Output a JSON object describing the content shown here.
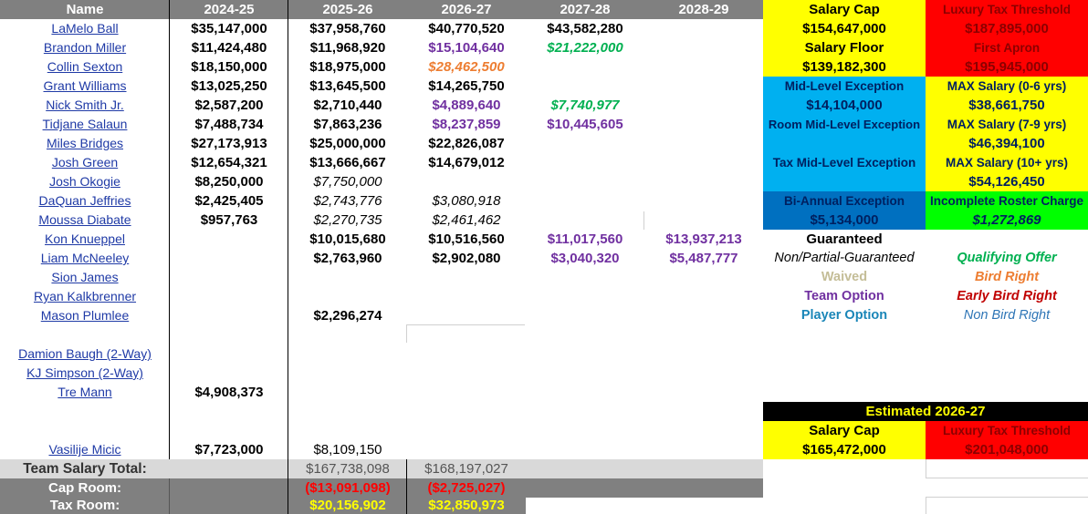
{
  "headers": [
    "Name",
    "2024-25",
    "2025-26",
    "2026-27",
    "2027-28",
    "2028-29"
  ],
  "colors": {
    "header_gray": "#808080",
    "yellow": "#ffff00",
    "red": "#ff0000",
    "cyan": "#00b0f0",
    "blue": "#0070c0",
    "green": "#00ff00",
    "black": "#000000",
    "light_gray": "#d9d9d9",
    "purple": "#7030a0",
    "orange": "#ed7d31",
    "green_text": "#00b050",
    "teal": "#0070c0",
    "tan": "#c4bd97",
    "dark_red": "#c00000",
    "name_blue": "#1f3aa6"
  },
  "players": [
    {
      "name": "LaMelo Ball",
      "cells": [
        {
          "v": "$35,147,000",
          "s": "g"
        },
        {
          "v": "$37,958,760",
          "s": "g"
        },
        {
          "v": "$40,770,520",
          "s": "g"
        },
        {
          "v": "$43,582,280",
          "s": "g"
        },
        {
          "v": "",
          "s": ""
        }
      ]
    },
    {
      "name": "Brandon Miller",
      "cells": [
        {
          "v": "$11,424,480",
          "s": "g"
        },
        {
          "v": "$11,968,920",
          "s": "g"
        },
        {
          "v": "$15,104,640",
          "s": "team"
        },
        {
          "v": "$21,222,000",
          "s": "qo"
        },
        {
          "v": "",
          "s": ""
        }
      ]
    },
    {
      "name": "Collin Sexton",
      "cells": [
        {
          "v": "$18,150,000",
          "s": "g"
        },
        {
          "v": "$18,975,000",
          "s": "g"
        },
        {
          "v": "$28,462,500",
          "s": "bird"
        },
        {
          "v": "",
          "s": ""
        },
        {
          "v": "",
          "s": ""
        }
      ]
    },
    {
      "name": "Grant Williams ",
      "cells": [
        {
          "v": "$13,025,250",
          "s": "g"
        },
        {
          "v": "$13,645,500",
          "s": "g"
        },
        {
          "v": "$14,265,750",
          "s": "g"
        },
        {
          "v": "",
          "s": ""
        },
        {
          "v": "",
          "s": ""
        }
      ]
    },
    {
      "name": "Nick Smith Jr.",
      "cells": [
        {
          "v": "$2,587,200",
          "s": "g"
        },
        {
          "v": "$2,710,440",
          "s": "g"
        },
        {
          "v": "$4,889,640",
          "s": "team"
        },
        {
          "v": "$7,740,977",
          "s": "qo"
        },
        {
          "v": "",
          "s": ""
        }
      ]
    },
    {
      "name": "Tidjane Salaun",
      "cells": [
        {
          "v": "$7,488,734",
          "s": "g"
        },
        {
          "v": "$7,863,236",
          "s": "g"
        },
        {
          "v": "$8,237,859",
          "s": "team"
        },
        {
          "v": "$10,445,605",
          "s": "team"
        },
        {
          "v": "",
          "s": ""
        }
      ]
    },
    {
      "name": "Miles Bridges",
      "cells": [
        {
          "v": "$27,173,913",
          "s": "g"
        },
        {
          "v": "$25,000,000",
          "s": "g"
        },
        {
          "v": "$22,826,087",
          "s": "g"
        },
        {
          "v": "",
          "s": ""
        },
        {
          "v": "",
          "s": ""
        }
      ]
    },
    {
      "name": "Josh Green",
      "cells": [
        {
          "v": "$12,654,321",
          "s": "g"
        },
        {
          "v": "$13,666,667",
          "s": "g"
        },
        {
          "v": "$14,679,012",
          "s": "g"
        },
        {
          "v": "",
          "s": ""
        },
        {
          "v": "",
          "s": ""
        }
      ]
    },
    {
      "name": "Josh Okogie",
      "cells": [
        {
          "v": "$8,250,000",
          "s": "g"
        },
        {
          "v": "$7,750,000",
          "s": "np"
        },
        {
          "v": "",
          "s": ""
        },
        {
          "v": "",
          "s": ""
        },
        {
          "v": "",
          "s": ""
        }
      ]
    },
    {
      "name": "DaQuan Jeffries",
      "cells": [
        {
          "v": "$2,425,405",
          "s": "g"
        },
        {
          "v": "$2,743,776",
          "s": "np"
        },
        {
          "v": "$3,080,918",
          "s": "np"
        },
        {
          "v": "",
          "s": ""
        },
        {
          "v": "",
          "s": ""
        }
      ]
    },
    {
      "name": "Moussa Diabate",
      "cells": [
        {
          "v": "$957,763",
          "s": "g"
        },
        {
          "v": "$2,270,735",
          "s": "np"
        },
        {
          "v": "$2,461,462",
          "s": "np"
        },
        {
          "v": "",
          "s": ""
        },
        {
          "v": "",
          "s": ""
        }
      ]
    },
    {
      "name": "Kon Knueppel",
      "cells": [
        {
          "v": "",
          "s": ""
        },
        {
          "v": "$10,015,680",
          "s": "g"
        },
        {
          "v": "$10,516,560",
          "s": "g"
        },
        {
          "v": "$11,017,560",
          "s": "team"
        },
        {
          "v": "$13,937,213",
          "s": "team"
        }
      ]
    },
    {
      "name": "Liam McNeeley",
      "cells": [
        {
          "v": "",
          "s": ""
        },
        {
          "v": "$2,763,960",
          "s": "g"
        },
        {
          "v": "$2,902,080",
          "s": "g"
        },
        {
          "v": "$3,040,320",
          "s": "team"
        },
        {
          "v": "$5,487,777",
          "s": "team"
        }
      ]
    },
    {
      "name": "Sion James",
      "cells": [
        {
          "v": "",
          "s": ""
        },
        {
          "v": "",
          "s": ""
        },
        {
          "v": "",
          "s": ""
        },
        {
          "v": "",
          "s": ""
        },
        {
          "v": "",
          "s": ""
        }
      ]
    },
    {
      "name": "Ryan Kalkbrenner",
      "cells": [
        {
          "v": "",
          "s": ""
        },
        {
          "v": "",
          "s": ""
        },
        {
          "v": "",
          "s": ""
        },
        {
          "v": "",
          "s": ""
        },
        {
          "v": "",
          "s": ""
        }
      ]
    },
    {
      "name": "Mason Plumlee",
      "cells": [
        {
          "v": "",
          "s": ""
        },
        {
          "v": "$2,296,274",
          "s": "g"
        },
        {
          "v": "",
          "s": ""
        },
        {
          "v": "",
          "s": ""
        },
        {
          "v": "",
          "s": ""
        }
      ]
    },
    {
      "name": "",
      "cells": [
        {
          "v": "",
          "s": ""
        },
        {
          "v": "",
          "s": ""
        },
        {
          "v": "",
          "s": ""
        },
        {
          "v": "",
          "s": ""
        },
        {
          "v": "",
          "s": ""
        }
      ]
    },
    {
      "name": "Damion Baugh (2-Way)",
      "cells": [
        {
          "v": "",
          "s": ""
        },
        {
          "v": "",
          "s": ""
        },
        {
          "v": "",
          "s": ""
        },
        {
          "v": "",
          "s": ""
        },
        {
          "v": "",
          "s": ""
        }
      ]
    },
    {
      "name": " KJ Simpson (2-Way)",
      "cells": [
        {
          "v": "",
          "s": ""
        },
        {
          "v": "",
          "s": ""
        },
        {
          "v": "",
          "s": ""
        },
        {
          "v": "",
          "s": ""
        },
        {
          "v": "",
          "s": ""
        }
      ]
    },
    {
      "name": "Tre Mann",
      "cells": [
        {
          "v": "$4,908,373",
          "s": "g"
        },
        {
          "v": "",
          "s": ""
        },
        {
          "v": "",
          "s": ""
        },
        {
          "v": "",
          "s": ""
        },
        {
          "v": "",
          "s": ""
        }
      ]
    },
    {
      "name": "",
      "cells": [
        {
          "v": "",
          "s": ""
        },
        {
          "v": "",
          "s": ""
        },
        {
          "v": "",
          "s": ""
        },
        {
          "v": "",
          "s": ""
        },
        {
          "v": "",
          "s": ""
        }
      ]
    },
    {
      "name": "",
      "cells": [
        {
          "v": "",
          "s": ""
        },
        {
          "v": "",
          "s": ""
        },
        {
          "v": "",
          "s": ""
        },
        {
          "v": "",
          "s": ""
        },
        {
          "v": "",
          "s": ""
        }
      ]
    },
    {
      "name": "Vasilije Micic",
      "cells": [
        {
          "v": "$7,723,000",
          "s": "g"
        },
        {
          "v": "$8,109,150",
          "s": "plain"
        },
        {
          "v": "",
          "s": ""
        },
        {
          "v": "",
          "s": ""
        },
        {
          "v": "",
          "s": ""
        }
      ]
    }
  ],
  "totals": {
    "team_salary": {
      "label": "Team Salary Total:",
      "c2025": "$167,738,098",
      "c2026": "$168,197,027"
    },
    "cap_room": {
      "label": "Cap Room:",
      "c2025": "($13,091,098)",
      "c2026": "($2,725,027)"
    },
    "tax_room": {
      "label": "Tax Room:",
      "c2025": "$20,156,902",
      "c2026": "$32,850,973"
    }
  },
  "info": {
    "salary_cap": {
      "label": "Salary Cap",
      "value": "$154,647,000"
    },
    "luxury_tax": {
      "label": "Luxury Tax Threshold",
      "value": "$187,895,000"
    },
    "salary_floor": {
      "label": "Salary Floor",
      "value": "$139,182,300"
    },
    "first_apron": {
      "label": "First Apron",
      "value": "$195,945,000"
    },
    "mle": {
      "label": "Mid-Level Exception",
      "value": "$14,104,000"
    },
    "max_0_6": {
      "label": "MAX Salary (0-6 yrs)",
      "value": "$38,661,750"
    },
    "room_mle": {
      "label": "Room Mid-Level Exception",
      "value": ""
    },
    "max_7_9": {
      "label": "MAX Salary (7-9 yrs)",
      "value": "$46,394,100"
    },
    "tax_mle": {
      "label": "Tax Mid-Level Exception",
      "value": ""
    },
    "max_10": {
      "label": "MAX Salary (10+ yrs)",
      "value": "$54,126,450"
    },
    "bi_annual": {
      "label": "Bi-Annual Exception",
      "value": "$5,134,000"
    },
    "incomplete": {
      "label": "Incomplete Roster Charge",
      "value": "$1,272,869"
    }
  },
  "legend": {
    "guaranteed": "Guaranteed",
    "non_partial": "Non/Partial-Guaranteed",
    "waived": "Waived",
    "team_option": "Team Option",
    "player_option": "Player Option",
    "qualifying_offer": "Qualifying Offer",
    "bird_right": "Bird Right",
    "early_bird": "Early Bird Right",
    "non_bird": "Non Bird Right"
  },
  "estimate": {
    "title": "Estimated 2026-27",
    "salary_cap": {
      "label": "Salary Cap",
      "value": "$165,472,000"
    },
    "luxury_tax": {
      "label": "Luxury Tax Threshold",
      "value": "$201,048,000"
    }
  }
}
